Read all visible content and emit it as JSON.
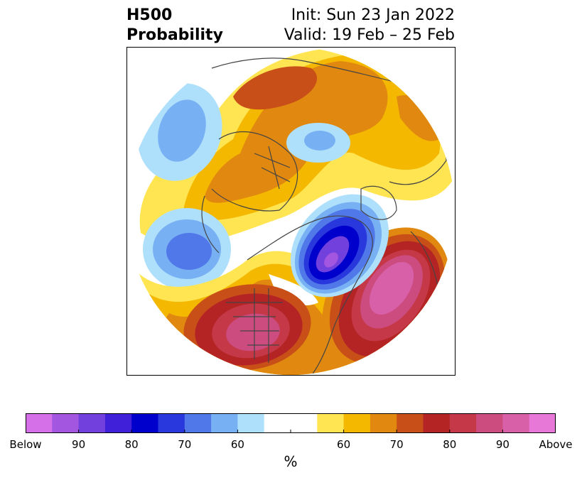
{
  "title": {
    "left_line1": "H500",
    "left_line2": "Probability",
    "right_line1": "Init: Sun 23 Jan 2022",
    "right_line2": "Valid: 19 Feb – 25 Feb"
  },
  "colorbar": {
    "colors": [
      "#d670e8",
      "#a356e0",
      "#7240dc",
      "#4020d8",
      "#0000cc",
      "#2838dc",
      "#5078e8",
      "#78b0f4",
      "#aee0fc",
      "#ffffff",
      "#ffffff",
      "#ffe552",
      "#f4b800",
      "#e08810",
      "#c85018",
      "#b42424",
      "#c43848",
      "#cc4c80",
      "#d860a8",
      "#e878d8"
    ],
    "labels": [
      "Below",
      "90",
      "80",
      "70",
      "60",
      "",
      "60",
      "70",
      "80",
      "90",
      "Above"
    ],
    "unit": "%"
  },
  "map_colors": {
    "ocean": "#ffffff",
    "border": "#444444",
    "blue_light": "#aee0fc",
    "blue_mid": "#78b0f4",
    "blue_deep": "#5078e8",
    "blue_dark": "#2838dc",
    "blue_navy": "#0000cc",
    "purple": "#7240dc",
    "violet": "#a356e0",
    "yellow": "#ffe552",
    "gold": "#f4b800",
    "orange": "#e08810",
    "dark_orange": "#c85018",
    "red": "#b42424",
    "crimson": "#c43848",
    "rose": "#cc4c80",
    "pink": "#d860a8"
  }
}
